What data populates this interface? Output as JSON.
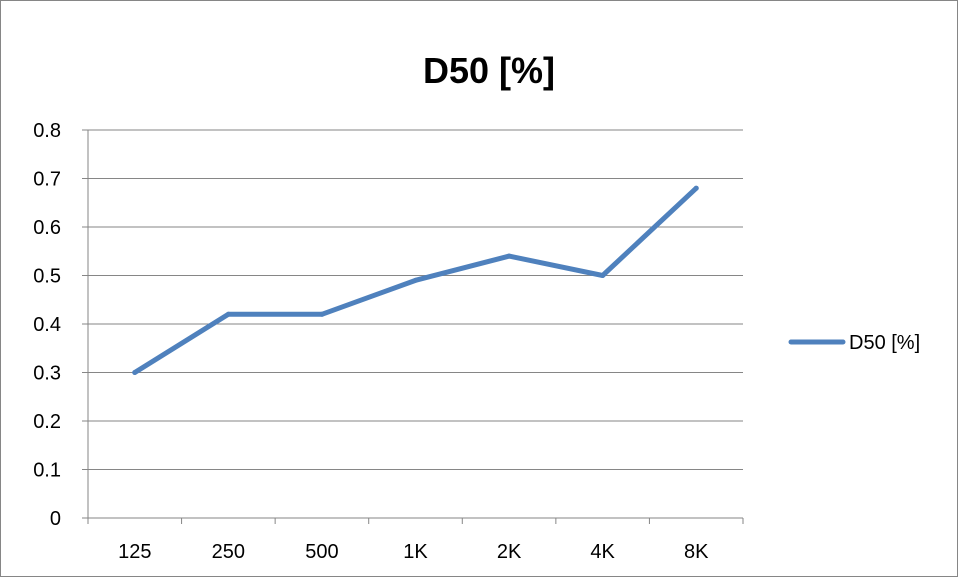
{
  "chart_data": {
    "type": "line",
    "title": "D50 [%]",
    "xlabel": "",
    "ylabel": "",
    "categories": [
      "125",
      "250",
      "500",
      "1K",
      "2K",
      "4K",
      "8K"
    ],
    "series": [
      {
        "name": "D50 [%]",
        "values": [
          0.3,
          0.42,
          0.42,
          0.49,
          0.54,
          0.5,
          0.68
        ]
      }
    ],
    "ylim": [
      0,
      0.8
    ],
    "yticks": [
      "0",
      "0.1",
      "0.2",
      "0.3",
      "0.4",
      "0.5",
      "0.6",
      "0.7",
      "0.8"
    ],
    "ytick_values": [
      0,
      0.1,
      0.2,
      0.3,
      0.4,
      0.5,
      0.6,
      0.7,
      0.8
    ],
    "grid": "horizontal",
    "legend_position": "right",
    "colors": {
      "series": "#4F81BD",
      "grid": "#868686",
      "axis": "#868686"
    }
  }
}
